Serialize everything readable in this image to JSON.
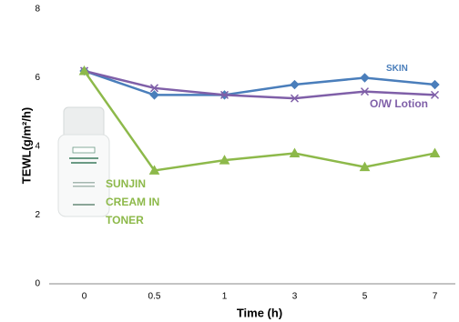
{
  "chart_data": {
    "type": "line",
    "x_label": "Time (h)",
    "y_label": "TEWL(g/m²/h)",
    "categories": [
      "0",
      "0.5",
      "1",
      "3",
      "5",
      "7"
    ],
    "series": [
      {
        "name": "SKIN",
        "color": "#4a7ebb",
        "marker": "diamond",
        "values": [
          6.2,
          5.5,
          5.5,
          5.8,
          6.0,
          5.8
        ]
      },
      {
        "name": "O/W Lotion",
        "color": "#7f5fa8",
        "marker": "x",
        "values": [
          6.2,
          5.7,
          5.5,
          5.4,
          5.6,
          5.5
        ]
      },
      {
        "name": "SUNJIN CREAM IN TONER",
        "color": "#8db94a",
        "marker": "triangle",
        "values": [
          6.2,
          3.3,
          3.6,
          3.8,
          3.4,
          3.8
        ]
      }
    ],
    "ylim": [
      0,
      8
    ],
    "yticks": [
      0,
      2,
      4,
      6,
      8
    ],
    "grid": false
  }
}
